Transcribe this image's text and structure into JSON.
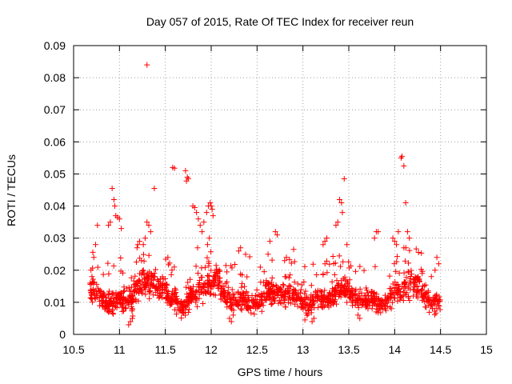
{
  "chart_data": {
    "type": "scatter",
    "title": "Day 057 of 2015, Rate Of TEC Index for receiver reun",
    "xlabel": "GPS time / hours",
    "ylabel": "ROTI / TECUs",
    "xlim": [
      10.5,
      15
    ],
    "ylim": [
      0,
      0.09
    ],
    "xticks": [
      "10.5",
      "11",
      "11.5",
      "12",
      "12.5",
      "13",
      "13.5",
      "14",
      "14.5",
      "15"
    ],
    "yticks": [
      "0",
      "0.01",
      "0.02",
      "0.03",
      "0.04",
      "0.05",
      "0.06",
      "0.07",
      "0.08",
      "0.09"
    ],
    "grid": true,
    "marker": "+",
    "marker_color": "#ff0000",
    "points_note": "dense band of points 10.68-14.5 h mostly 0.005-0.02; highlighted excursions listed below",
    "series": [
      {
        "name": "ROTI",
        "x": [
          11.3,
          14.07,
          14.08,
          14.1,
          11.58,
          11.6,
          11.72,
          11.74,
          11.75,
          11.73,
          10.92,
          11.38,
          10.94,
          10.95,
          10.96,
          10.98,
          11.0,
          11.02,
          10.9,
          10.88,
          11.8,
          11.82,
          11.84,
          11.86,
          11.88,
          11.9,
          11.92,
          11.95,
          11.97,
          11.99,
          12.0,
          12.01,
          12.02,
          11.98,
          11.96,
          11.3,
          11.32,
          11.34,
          11.28,
          11.26,
          13.4,
          13.42,
          13.43,
          13.45,
          13.38,
          13.36,
          13.48,
          13.22,
          13.24,
          13.26,
          13.8,
          13.82,
          13.78,
          13.98,
          14.0,
          14.02,
          14.04,
          14.12,
          14.14,
          14.16,
          12.7,
          12.72,
          12.64,
          12.3,
          12.32,
          12.62,
          12.8,
          12.82,
          11.2,
          11.22,
          10.7,
          10.72,
          10.74,
          10.68,
          10.76,
          14.46,
          14.48,
          14.44,
          14.4,
          14.3,
          11.1,
          11.12,
          11.14,
          12.2,
          12.22,
          12.24,
          13.1,
          13.12,
          13.6,
          13.62
        ],
        "y": [
          0.084,
          0.055,
          0.0555,
          0.0525,
          0.052,
          0.0518,
          0.051,
          0.049,
          0.0485,
          0.0478,
          0.0455,
          0.0455,
          0.042,
          0.04,
          0.037,
          0.0365,
          0.036,
          0.033,
          0.035,
          0.034,
          0.04,
          0.0395,
          0.038,
          0.036,
          0.034,
          0.032,
          0.035,
          0.038,
          0.04,
          0.041,
          0.04,
          0.039,
          0.037,
          0.03,
          0.028,
          0.035,
          0.034,
          0.032,
          0.03,
          0.028,
          0.042,
          0.041,
          0.038,
          0.0485,
          0.035,
          0.034,
          0.028,
          0.028,
          0.029,
          0.03,
          0.032,
          0.032,
          0.03,
          0.03,
          0.029,
          0.028,
          0.032,
          0.041,
          0.032,
          0.03,
          0.032,
          0.031,
          0.029,
          0.026,
          0.027,
          0.025,
          0.023,
          0.024,
          0.028,
          0.029,
          0.018,
          0.024,
          0.028,
          0.016,
          0.034,
          0.024,
          0.022,
          0.02,
          0.018,
          0.019,
          0.003,
          0.004,
          0.005,
          0.005,
          0.004,
          0.006,
          0.004,
          0.005,
          0.006,
          0.005
        ]
      }
    ]
  }
}
